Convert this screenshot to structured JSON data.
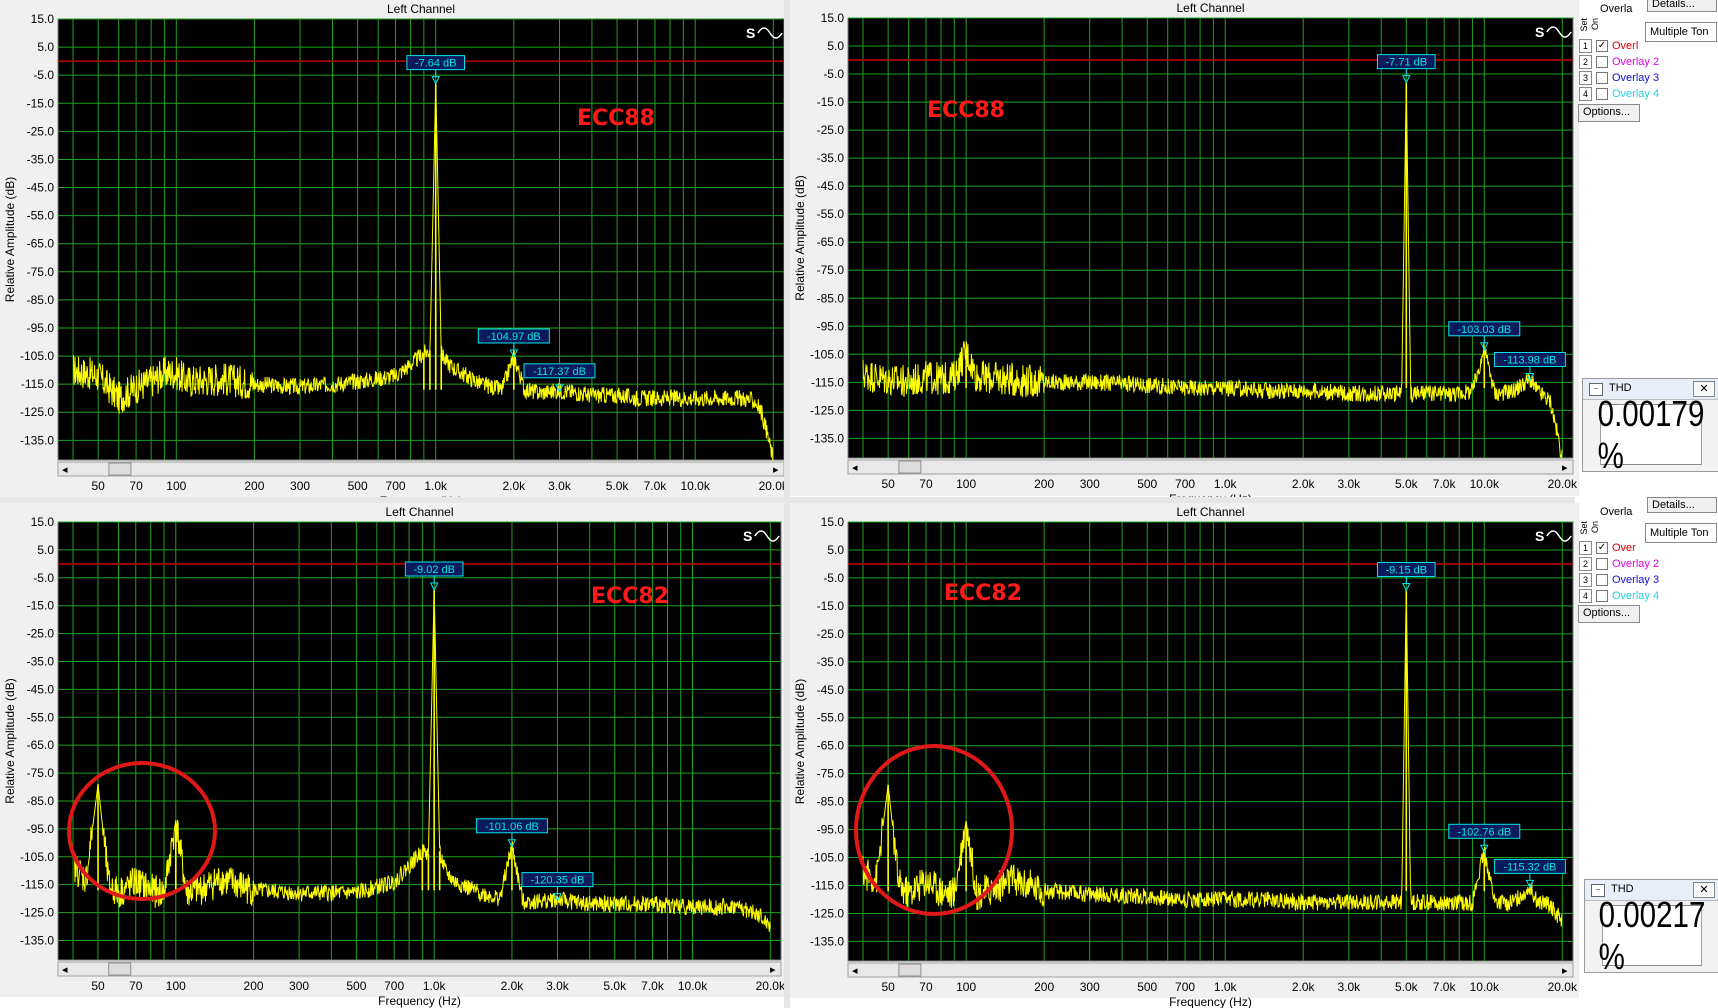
{
  "panels": [
    {
      "title": "Left Channel",
      "annotation": "ECC88",
      "ylabel": "Relative Amplitude (dB)",
      "xlabel": "Frequency (Hz)",
      "markers": [
        {
          "label": "-7.64 dB",
          "freq": 1000,
          "db": -7.64
        },
        {
          "label": "-104.97 dB",
          "freq": 2000,
          "db": -104.97
        },
        {
          "label": "-117.37 dB",
          "freq": 3000,
          "db": -117.37
        }
      ]
    },
    {
      "title": "Left Channel",
      "annotation": "ECC88",
      "ylabel": "Relative Amplitude (dB)",
      "xlabel": "Frequency (Hz)",
      "markers": [
        {
          "label": "-7.71 dB",
          "freq": 5000,
          "db": -7.71
        },
        {
          "label": "-103.03 dB",
          "freq": 10000,
          "db": -103.03
        },
        {
          "label": "-113.98 dB",
          "freq": 15000,
          "db": -113.98
        }
      ]
    },
    {
      "title": "Left Channel",
      "annotation": "ECC82",
      "ylabel": "Relative Amplitude (dB)",
      "xlabel": "Frequency (Hz)",
      "markers": [
        {
          "label": "-9.02 dB",
          "freq": 1000,
          "db": -9.02
        },
        {
          "label": "-101.06 dB",
          "freq": 2000,
          "db": -101.06
        },
        {
          "label": "-120.35 dB",
          "freq": 3000,
          "db": -120.35
        }
      ]
    },
    {
      "title": "Left Channel",
      "annotation": "ECC82",
      "ylabel": "Relative Amplitude (dB)",
      "xlabel": "Frequency (Hz)",
      "markers": [
        {
          "label": "-9.15 dB",
          "freq": 5000,
          "db": -9.15
        },
        {
          "label": "-102.76 dB",
          "freq": 10000,
          "db": -102.76
        },
        {
          "label": "-115.32 dB",
          "freq": 15000,
          "db": -115.32
        }
      ]
    }
  ],
  "chart_data": [
    {
      "type": "line",
      "title": "Left Channel",
      "xlabel": "Frequency (Hz)",
      "ylabel": "Relative Amplitude (dB)",
      "xscale": "log",
      "xlim": [
        35,
        22000
      ],
      "ylim": [
        -142,
        15
      ],
      "yticks": [
        15,
        5,
        -5,
        -15,
        -25,
        -35,
        -45,
        -55,
        -65,
        -75,
        -85,
        -95,
        -105,
        -115,
        -125,
        -135
      ],
      "xticks": [
        50,
        70,
        100,
        200,
        300,
        500,
        700,
        1000,
        2000,
        3000,
        5000,
        7000,
        10000,
        20000
      ],
      "xtick_labels": [
        "50",
        "70",
        "100",
        "200",
        "300",
        "500",
        "700",
        "1.0k",
        "2.0k",
        "3.0k",
        "5.0k",
        "7.0k",
        "10.0k",
        "20.0k"
      ],
      "reference_line_db": 0,
      "series": [
        {
          "x": [
            40,
            50,
            60,
            70,
            80,
            90,
            100,
            110,
            150,
            200,
            300,
            400,
            500,
            600,
            700,
            800,
            900,
            950,
            1000,
            1050,
            1100,
            1200,
            1500,
            1800,
            2000,
            2200,
            2500,
            3000,
            3500,
            4000,
            5000,
            6000,
            7000,
            8000,
            10000,
            12000,
            15000,
            17000,
            18000,
            19000,
            20000
          ],
          "y": [
            -110,
            -112,
            -120,
            -116,
            -114,
            -111,
            -111,
            -114,
            -113,
            -115,
            -116,
            -115,
            -114,
            -113,
            -112,
            -108,
            -104,
            -103,
            -7.64,
            -104,
            -107,
            -110,
            -115,
            -117,
            -104.97,
            -117,
            -118,
            -117.37,
            -118,
            -119,
            -119,
            -120,
            -120,
            -120,
            -120,
            -120,
            -120,
            -121,
            -125,
            -133,
            -142
          ]
        }
      ]
    },
    {
      "type": "line",
      "title": "Left Channel",
      "xlabel": "Frequency (Hz)",
      "ylabel": "Relative Amplitude (dB)",
      "xscale": "log",
      "xlim": [
        35,
        22000
      ],
      "ylim": [
        -142,
        15
      ],
      "yticks": [
        15,
        5,
        -5,
        -15,
        -25,
        -35,
        -45,
        -55,
        -65,
        -75,
        -85,
        -95,
        -105,
        -115,
        -125,
        -135
      ],
      "xticks": [
        50,
        70,
        100,
        200,
        300,
        500,
        700,
        1000,
        2000,
        3000,
        5000,
        7000,
        10000,
        20000
      ],
      "xtick_labels": [
        "50",
        "70",
        "100",
        "200",
        "300",
        "500",
        "700",
        "1.0k",
        "2.0k",
        "3.0k",
        "5.0k",
        "7.0k",
        "10.0k",
        "20.0k"
      ],
      "reference_line_db": 0,
      "series": [
        {
          "x": [
            40,
            50,
            60,
            70,
            80,
            90,
            100,
            110,
            150,
            200,
            300,
            500,
            700,
            1000,
            1500,
            2000,
            3000,
            4000,
            4800,
            5000,
            5200,
            6000,
            7000,
            8000,
            9000,
            10000,
            11000,
            13000,
            15000,
            16000,
            18000,
            19000,
            20000
          ],
          "y": [
            -112,
            -114,
            -115,
            -113,
            -114,
            -113,
            -104,
            -113,
            -114,
            -115,
            -115,
            -116,
            -117,
            -117,
            -118,
            -118,
            -119,
            -119,
            -119,
            -7.71,
            -119,
            -119,
            -119,
            -119,
            -118,
            -103.03,
            -119,
            -118,
            -113.98,
            -118,
            -122,
            -132,
            -142
          ]
        }
      ]
    },
    {
      "type": "line",
      "title": "Left Channel",
      "xlabel": "Frequency (Hz)",
      "ylabel": "Relative Amplitude (dB)",
      "xscale": "log",
      "xlim": [
        35,
        22000
      ],
      "ylim": [
        -142,
        15
      ],
      "yticks": [
        15,
        5,
        -5,
        -15,
        -25,
        -35,
        -45,
        -55,
        -65,
        -75,
        -85,
        -95,
        -105,
        -115,
        -125,
        -135
      ],
      "xticks": [
        50,
        70,
        100,
        200,
        300,
        500,
        700,
        1000,
        2000,
        3000,
        5000,
        7000,
        10000,
        20000
      ],
      "xtick_labels": [
        "50",
        "70",
        "100",
        "200",
        "300",
        "500",
        "700",
        "1.0k",
        "2.0k",
        "3.0k",
        "5.0k",
        "7.0k",
        "10.0k",
        "20.0k"
      ],
      "reference_line_db": 0,
      "series": [
        {
          "x": [
            40,
            45,
            50,
            55,
            60,
            70,
            80,
            90,
            100,
            110,
            130,
            150,
            200,
            300,
            500,
            700,
            900,
            950,
            1000,
            1050,
            1100,
            1200,
            1500,
            1800,
            2000,
            2200,
            2500,
            3000,
            4000,
            5000,
            7000,
            10000,
            15000,
            18000,
            20000
          ],
          "y": [
            -108,
            -113,
            -79,
            -115,
            -118,
            -114,
            -117,
            -118,
            -92,
            -118,
            -116,
            -113,
            -117,
            -118,
            -118,
            -114,
            -103,
            -104,
            -9.02,
            -103,
            -110,
            -114,
            -118,
            -120,
            -101.06,
            -121,
            -121,
            -120.35,
            -122,
            -122,
            -122,
            -123,
            -123,
            -126,
            -130
          ]
        }
      ]
    },
    {
      "type": "line",
      "title": "Left Channel",
      "xlabel": "Frequency (Hz)",
      "ylabel": "Relative Amplitude (dB)",
      "xscale": "log",
      "xlim": [
        35,
        22000
      ],
      "ylim": [
        -142,
        15
      ],
      "yticks": [
        15,
        5,
        -5,
        -15,
        -25,
        -35,
        -45,
        -55,
        -65,
        -75,
        -85,
        -95,
        -105,
        -115,
        -125,
        -135
      ],
      "xticks": [
        50,
        70,
        100,
        200,
        300,
        500,
        700,
        1000,
        2000,
        3000,
        5000,
        7000,
        10000,
        20000
      ],
      "xtick_labels": [
        "50",
        "70",
        "100",
        "200",
        "300",
        "500",
        "700",
        "1.0k",
        "2.0k",
        "3.0k",
        "5.0k",
        "7.0k",
        "10.0k",
        "20.0k"
      ],
      "reference_line_db": 0,
      "series": [
        {
          "x": [
            40,
            45,
            50,
            55,
            60,
            70,
            80,
            90,
            100,
            110,
            130,
            150,
            200,
            300,
            500,
            700,
            1000,
            1500,
            2000,
            3000,
            4000,
            4800,
            5000,
            5200,
            7000,
            9000,
            10000,
            11000,
            13000,
            15000,
            16000,
            18000,
            20000
          ],
          "y": [
            -110,
            -113,
            -79,
            -115,
            -118,
            -113,
            -117,
            -118,
            -92,
            -118,
            -116,
            -113,
            -117,
            -118,
            -119,
            -120,
            -120,
            -120,
            -121,
            -121,
            -121,
            -121,
            -9.15,
            -121,
            -121,
            -121,
            -102.76,
            -121,
            -121,
            -115.32,
            -121,
            -122,
            -128
          ]
        }
      ]
    }
  ],
  "side_panels": [
    {
      "overlay_header": "Overla",
      "set_label": "Set",
      "on_label": "On",
      "details_button": "Details...",
      "multiple_tone": "Multiple Ton",
      "options_button": "Options...",
      "overlays": [
        {
          "num": "1",
          "label": "Overl",
          "checked": true,
          "color": "#e00000"
        },
        {
          "num": "2",
          "label": "Overlay 2",
          "checked": false,
          "color": "#e000e0"
        },
        {
          "num": "3",
          "label": "Overlay 3",
          "checked": false,
          "color": "#1010d0"
        },
        {
          "num": "4",
          "label": "Overlay 4",
          "checked": false,
          "color": "#20d0e0"
        }
      ],
      "thd_title": "THD",
      "thd_value": "0.00179 %"
    },
    {
      "overlay_header": "Overla",
      "set_label": "Set",
      "on_label": "On",
      "details_button": "Details...",
      "multiple_tone": "Multiple Ton",
      "options_button": "Options...",
      "overlays": [
        {
          "num": "1",
          "label": "Over",
          "checked": true,
          "color": "#e00000"
        },
        {
          "num": "2",
          "label": "Overlay 2",
          "checked": false,
          "color": "#e000e0"
        },
        {
          "num": "3",
          "label": "Overlay 3",
          "checked": false,
          "color": "#1010d0"
        },
        {
          "num": "4",
          "label": "Overlay 4",
          "checked": false,
          "color": "#20d0e0"
        }
      ],
      "thd_title": "THD",
      "thd_value": "0.00217 %"
    }
  ],
  "colors": {
    "plot_bg": "#000000",
    "grid": "#1fa21f",
    "trace": "#ffff00",
    "reference": "#c00000",
    "marker": "#00e5ee",
    "annotation": "#ff1a1a",
    "circle": "#e01818"
  }
}
